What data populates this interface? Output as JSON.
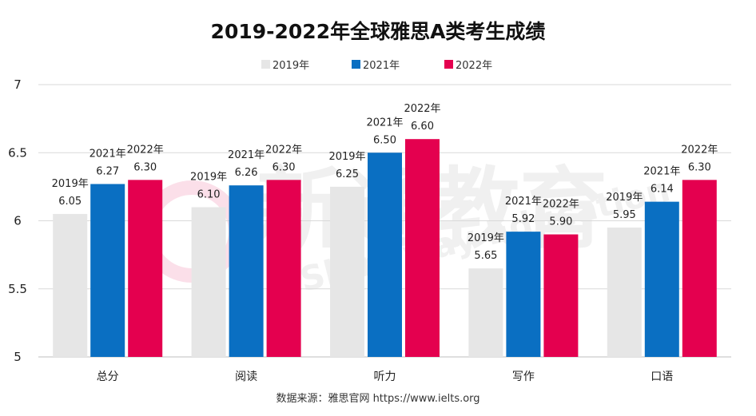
{
  "chart_data": {
    "type": "bar",
    "title": "2019-2022年全球雅思A类考生成绩",
    "categories": [
      "总分",
      "阅读",
      "听力",
      "写作",
      "口语"
    ],
    "series": [
      {
        "name": "2019年",
        "color": "#e6e6e6",
        "values": [
          6.05,
          6.1,
          6.25,
          5.65,
          5.95
        ],
        "labels": [
          "6.05",
          "6.10",
          "6.25",
          "5.65",
          "5.95"
        ]
      },
      {
        "name": "2021年",
        "color": "#0a6fc2",
        "values": [
          6.27,
          6.26,
          6.5,
          5.92,
          6.14
        ],
        "labels": [
          "6.27",
          "6.26",
          "6.50",
          "5.92",
          "6.14"
        ]
      },
      {
        "name": "2022年",
        "color": "#e4004f",
        "values": [
          6.3,
          6.3,
          6.6,
          5.9,
          6.3
        ],
        "labels": [
          "6.30",
          "6.30",
          "6.60",
          "5.90",
          "6.30"
        ]
      }
    ],
    "ylim": [
      5,
      7
    ],
    "yticks": [
      "5",
      "5.5",
      "6",
      "6.5",
      "7"
    ],
    "grid": true,
    "legend": "top-center"
  },
  "source": "数据来源：雅思官网 https://www.ielts.org",
  "watermark": {
    "brand": "新通教育",
    "english": "Shinyway Education"
  }
}
